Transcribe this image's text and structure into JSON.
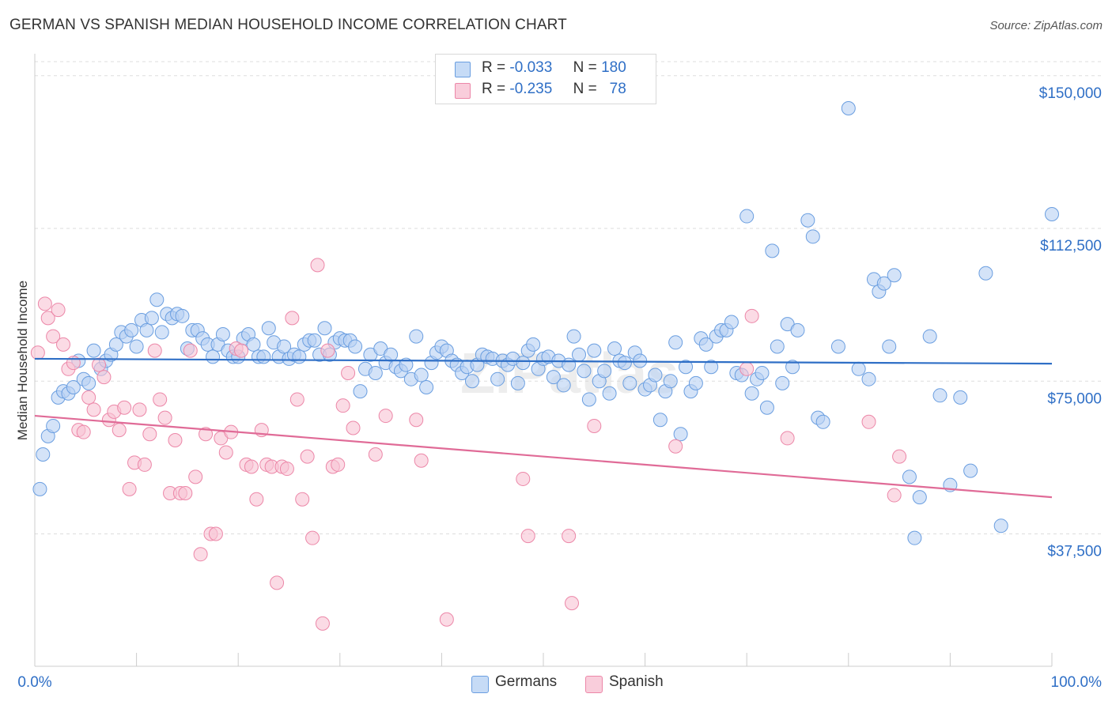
{
  "title": "GERMAN VS SPANISH MEDIAN HOUSEHOLD INCOME CORRELATION CHART",
  "source": "Source: ZipAtlas.com",
  "watermark": "ZIPatlas",
  "legend": {
    "rows": [
      {
        "r_label": "R =",
        "r_value": "-0.033",
        "n_label": "N =",
        "n_value": "180",
        "color": "#9dbfea"
      },
      {
        "r_label": "R =",
        "r_value": "-0.235",
        "n_label": "N =",
        "n_value": "78",
        "color": "#f6b8cb"
      }
    ]
  },
  "chart_data": {
    "type": "scatter",
    "ylabel": "Median Household Income",
    "xlabel": "",
    "x_tick_labels": [
      "0.0%",
      "100.0%"
    ],
    "y_tick_labels": [
      "$37,500",
      "$75,000",
      "$112,500",
      "$150,000"
    ],
    "y_ticks": [
      37500,
      75000,
      112500,
      150000
    ],
    "xlim": [
      0,
      100
    ],
    "ylim": [
      5000,
      155000
    ],
    "grid": "horizontal dashed",
    "legend_placement": "bottom-center",
    "series": [
      {
        "name": "Germans",
        "color": "#6a9ee0",
        "fill": "#b7d1f3",
        "trend": {
          "x": [
            0,
            100
          ],
          "y": [
            80500,
            79300
          ]
        },
        "points": [
          [
            0.5,
            48500
          ],
          [
            0.8,
            57000
          ],
          [
            1.3,
            61500
          ],
          [
            1.8,
            64000
          ],
          [
            2.3,
            71000
          ],
          [
            2.8,
            72500
          ],
          [
            3.3,
            72000
          ],
          [
            3.8,
            73500
          ],
          [
            4.3,
            80000
          ],
          [
            4.8,
            75500
          ],
          [
            5.3,
            74500
          ],
          [
            5.8,
            82500
          ],
          [
            6.5,
            78000
          ],
          [
            7.0,
            80000
          ],
          [
            7.5,
            81500
          ],
          [
            8.0,
            84000
          ],
          [
            8.5,
            87000
          ],
          [
            9.0,
            86000
          ],
          [
            9.5,
            87500
          ],
          [
            10.0,
            83500
          ],
          [
            10.5,
            90000
          ],
          [
            11.0,
            87500
          ],
          [
            11.5,
            90500
          ],
          [
            12.0,
            95000
          ],
          [
            12.5,
            87000
          ],
          [
            13.0,
            91500
          ],
          [
            13.5,
            90500
          ],
          [
            14.0,
            91500
          ],
          [
            14.5,
            91000
          ],
          [
            15.0,
            83000
          ],
          [
            15.5,
            87500
          ],
          [
            16.0,
            87500
          ],
          [
            16.5,
            85500
          ],
          [
            17.0,
            84000
          ],
          [
            17.5,
            81000
          ],
          [
            18.0,
            84000
          ],
          [
            18.5,
            86500
          ],
          [
            19.0,
            82500
          ],
          [
            19.5,
            81000
          ],
          [
            20.0,
            81000
          ],
          [
            20.5,
            85500
          ],
          [
            21.0,
            86500
          ],
          [
            21.5,
            84000
          ],
          [
            22.0,
            81000
          ],
          [
            22.5,
            81000
          ],
          [
            23.0,
            88000
          ],
          [
            23.5,
            84500
          ],
          [
            24.0,
            81000
          ],
          [
            24.5,
            83500
          ],
          [
            25.0,
            80500
          ],
          [
            25.5,
            81500
          ],
          [
            26.0,
            81000
          ],
          [
            26.5,
            84000
          ],
          [
            27.0,
            85000
          ],
          [
            27.5,
            85000
          ],
          [
            28.0,
            81500
          ],
          [
            28.5,
            88000
          ],
          [
            29.0,
            81500
          ],
          [
            29.5,
            84500
          ],
          [
            30.0,
            85500
          ],
          [
            30.5,
            85000
          ],
          [
            31.0,
            85000
          ],
          [
            31.5,
            83500
          ],
          [
            32.0,
            72500
          ],
          [
            32.5,
            78000
          ],
          [
            33.0,
            81500
          ],
          [
            33.5,
            77000
          ],
          [
            34.0,
            83000
          ],
          [
            34.5,
            79500
          ],
          [
            35.0,
            81500
          ],
          [
            35.5,
            78500
          ],
          [
            36.0,
            77500
          ],
          [
            36.5,
            79000
          ],
          [
            37.0,
            75500
          ],
          [
            37.5,
            86000
          ],
          [
            38.0,
            76500
          ],
          [
            38.5,
            73500
          ],
          [
            39.0,
            79500
          ],
          [
            39.5,
            82000
          ],
          [
            40.0,
            83500
          ],
          [
            40.5,
            82500
          ],
          [
            41.0,
            80000
          ],
          [
            41.5,
            79000
          ],
          [
            42.0,
            77000
          ],
          [
            42.5,
            78500
          ],
          [
            43.0,
            75000
          ],
          [
            43.5,
            79000
          ],
          [
            44.0,
            81500
          ],
          [
            44.5,
            81000
          ],
          [
            45.0,
            80500
          ],
          [
            45.5,
            75500
          ],
          [
            46.0,
            80000
          ],
          [
            46.5,
            79000
          ],
          [
            47.0,
            80500
          ],
          [
            47.5,
            74500
          ],
          [
            48.0,
            79500
          ],
          [
            48.5,
            82500
          ],
          [
            49.0,
            84000
          ],
          [
            49.5,
            78000
          ],
          [
            50.0,
            80500
          ],
          [
            50.5,
            81000
          ],
          [
            51.0,
            76000
          ],
          [
            51.5,
            80000
          ],
          [
            52.0,
            74000
          ],
          [
            52.5,
            79000
          ],
          [
            53.0,
            86000
          ],
          [
            53.5,
            81500
          ],
          [
            54.0,
            77500
          ],
          [
            54.5,
            70500
          ],
          [
            55.0,
            82500
          ],
          [
            55.5,
            75000
          ],
          [
            56.0,
            77500
          ],
          [
            56.5,
            72000
          ],
          [
            57.0,
            83000
          ],
          [
            57.5,
            80000
          ],
          [
            58.0,
            79500
          ],
          [
            58.5,
            74500
          ],
          [
            59.0,
            82000
          ],
          [
            59.5,
            80000
          ],
          [
            60.0,
            73000
          ],
          [
            60.5,
            74000
          ],
          [
            61.0,
            76500
          ],
          [
            61.5,
            65500
          ],
          [
            62.0,
            72500
          ],
          [
            62.5,
            75000
          ],
          [
            63.0,
            84500
          ],
          [
            63.5,
            62000
          ],
          [
            64.0,
            78500
          ],
          [
            64.5,
            72500
          ],
          [
            65.0,
            74500
          ],
          [
            65.5,
            85500
          ],
          [
            66.0,
            84000
          ],
          [
            66.5,
            78500
          ],
          [
            67.0,
            86000
          ],
          [
            67.5,
            87500
          ],
          [
            68.0,
            87500
          ],
          [
            68.5,
            89500
          ],
          [
            69.0,
            77000
          ],
          [
            69.5,
            76500
          ],
          [
            70.0,
            115500
          ],
          [
            70.5,
            72000
          ],
          [
            71.0,
            75500
          ],
          [
            71.5,
            77000
          ],
          [
            72.0,
            68500
          ],
          [
            72.5,
            107000
          ],
          [
            73.0,
            83500
          ],
          [
            73.5,
            74500
          ],
          [
            74.0,
            89000
          ],
          [
            74.5,
            78500
          ],
          [
            75.0,
            87500
          ],
          [
            76.0,
            114500
          ],
          [
            76.5,
            110500
          ],
          [
            77.0,
            66000
          ],
          [
            77.5,
            65000
          ],
          [
            79.0,
            83500
          ],
          [
            80.0,
            142000
          ],
          [
            81.0,
            78000
          ],
          [
            82.0,
            75500
          ],
          [
            82.5,
            100000
          ],
          [
            83.0,
            97000
          ],
          [
            83.5,
            99000
          ],
          [
            84.0,
            83500
          ],
          [
            84.5,
            101000
          ],
          [
            86.0,
            51500
          ],
          [
            86.5,
            36500
          ],
          [
            87.0,
            46500
          ],
          [
            88.0,
            86000
          ],
          [
            89.0,
            71500
          ],
          [
            90.0,
            49500
          ],
          [
            91.0,
            71000
          ],
          [
            92.0,
            53000
          ],
          [
            93.5,
            101500
          ],
          [
            95.0,
            39500
          ],
          [
            100.0,
            116000
          ]
        ]
      },
      {
        "name": "Spanish",
        "color": "#ec87a8",
        "fill": "#f8c3d3",
        "trend": {
          "x": [
            0,
            100
          ],
          "y": [
            66500,
            46500
          ]
        },
        "points": [
          [
            0.3,
            82000
          ],
          [
            1.0,
            94000
          ],
          [
            1.3,
            90500
          ],
          [
            1.8,
            86000
          ],
          [
            2.3,
            92500
          ],
          [
            2.8,
            84000
          ],
          [
            3.3,
            78000
          ],
          [
            3.8,
            79500
          ],
          [
            4.3,
            63000
          ],
          [
            4.8,
            62500
          ],
          [
            5.3,
            71000
          ],
          [
            5.8,
            68000
          ],
          [
            6.3,
            79000
          ],
          [
            6.8,
            76000
          ],
          [
            7.3,
            65500
          ],
          [
            7.8,
            67500
          ],
          [
            8.3,
            63000
          ],
          [
            8.8,
            68500
          ],
          [
            9.3,
            48500
          ],
          [
            9.8,
            55000
          ],
          [
            10.3,
            68000
          ],
          [
            10.8,
            54500
          ],
          [
            11.3,
            62000
          ],
          [
            11.8,
            82500
          ],
          [
            12.3,
            70500
          ],
          [
            12.8,
            66000
          ],
          [
            13.3,
            47500
          ],
          [
            13.8,
            60500
          ],
          [
            14.3,
            47500
          ],
          [
            14.8,
            47500
          ],
          [
            15.3,
            82500
          ],
          [
            15.8,
            51500
          ],
          [
            16.3,
            32500
          ],
          [
            16.8,
            62000
          ],
          [
            17.3,
            37500
          ],
          [
            17.8,
            37500
          ],
          [
            18.3,
            61000
          ],
          [
            18.8,
            57500
          ],
          [
            19.3,
            62500
          ],
          [
            19.8,
            83000
          ],
          [
            20.3,
            82500
          ],
          [
            20.8,
            54500
          ],
          [
            21.3,
            54000
          ],
          [
            21.8,
            46000
          ],
          [
            22.3,
            63000
          ],
          [
            22.8,
            54500
          ],
          [
            23.3,
            54000
          ],
          [
            23.8,
            25500
          ],
          [
            24.3,
            54000
          ],
          [
            24.8,
            53500
          ],
          [
            25.3,
            90500
          ],
          [
            25.8,
            70500
          ],
          [
            26.3,
            46000
          ],
          [
            26.8,
            56500
          ],
          [
            27.3,
            36500
          ],
          [
            27.8,
            103500
          ],
          [
            28.3,
            15500
          ],
          [
            28.8,
            82500
          ],
          [
            29.3,
            54000
          ],
          [
            29.8,
            54500
          ],
          [
            30.3,
            69000
          ],
          [
            30.8,
            77000
          ],
          [
            31.3,
            63500
          ],
          [
            33.5,
            57000
          ],
          [
            34.5,
            66500
          ],
          [
            37.5,
            65500
          ],
          [
            38.0,
            55500
          ],
          [
            40.5,
            16500
          ],
          [
            48.5,
            37000
          ],
          [
            48.0,
            51000
          ],
          [
            52.5,
            37000
          ],
          [
            52.8,
            20500
          ],
          [
            55.0,
            64000
          ],
          [
            63.0,
            59000
          ],
          [
            70.5,
            91000
          ],
          [
            70.0,
            78000
          ],
          [
            74.0,
            61000
          ],
          [
            82.0,
            65000
          ],
          [
            84.5,
            47000
          ],
          [
            85.0,
            56500
          ]
        ]
      }
    ]
  }
}
